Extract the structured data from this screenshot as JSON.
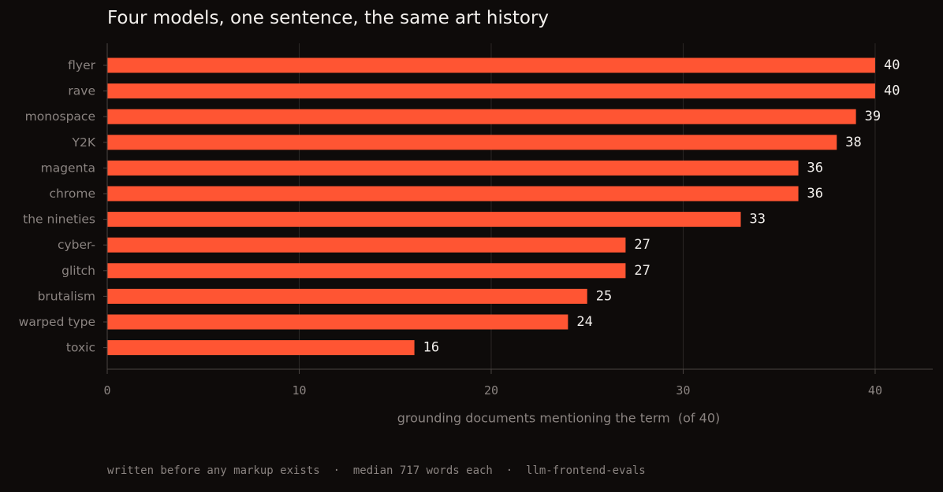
{
  "title": "Four models, one sentence, the same art history",
  "footer": "written before any markup exists  ·  median 717 words each  ·  llm-frontend-evals",
  "colors": {
    "background": "#0e0b0a",
    "bar": "#ff5533",
    "title_text": "#f2efec",
    "value_label": "#f2efec",
    "axis_text": "#8a8380",
    "grid": "#2c2826",
    "axis_line": "#4a4542"
  },
  "chart_data": {
    "type": "bar",
    "orientation": "horizontal",
    "title": "Four models, one sentence, the same art history",
    "xlabel": "grounding documents mentioning the term  (of 40)",
    "ylabel": "",
    "xlim": [
      0,
      43
    ],
    "xticks": [
      0,
      10,
      20,
      30,
      40
    ],
    "grid": "vertical",
    "categories": [
      "flyer",
      "rave",
      "monospace",
      "Y2K",
      "magenta",
      "chrome",
      "the nineties",
      "cyber-",
      "glitch",
      "brutalism",
      "warped type",
      "toxic"
    ],
    "values": [
      40,
      40,
      39,
      38,
      36,
      36,
      33,
      27,
      27,
      25,
      24,
      16
    ]
  }
}
